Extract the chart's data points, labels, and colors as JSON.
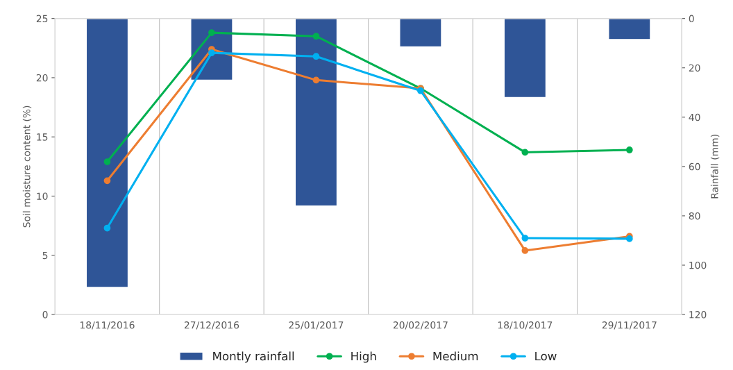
{
  "chart_data": {
    "type": "line",
    "ylabel": "Soil moisture content (%)",
    "y2label": "Rainfall (mm)",
    "categories": [
      "18/11/2016",
      "27/12/2016",
      "25/01/2017",
      "20/02/2017",
      "18/10/2017",
      "29/11/2017"
    ],
    "ylim": [
      0,
      25
    ],
    "yticks": [
      0,
      5,
      10,
      15,
      20,
      25
    ],
    "y2lim": [
      120,
      0
    ],
    "y2ticks": [
      0,
      20,
      40,
      60,
      80,
      100,
      120
    ],
    "series": [
      {
        "name": "Montly rainfall",
        "type": "bar",
        "axis": "y2",
        "color": "#2f5597",
        "values": [
          109,
          25,
          76,
          11.5,
          32,
          8.5
        ]
      },
      {
        "name": "High",
        "color": "#00b050",
        "values": [
          12.9,
          23.8,
          23.5,
          19.1,
          13.7,
          13.9
        ]
      },
      {
        "name": "Medium",
        "color": "#ed7d31",
        "values": [
          11.3,
          22.4,
          19.8,
          19.1,
          5.4,
          6.6
        ]
      },
      {
        "name": "Low",
        "color": "#00b0f0",
        "values": [
          7.3,
          22.1,
          21.8,
          18.9,
          6.45,
          6.4
        ]
      }
    ],
    "marker": "circle",
    "grid": "x",
    "legend": "bottom"
  }
}
